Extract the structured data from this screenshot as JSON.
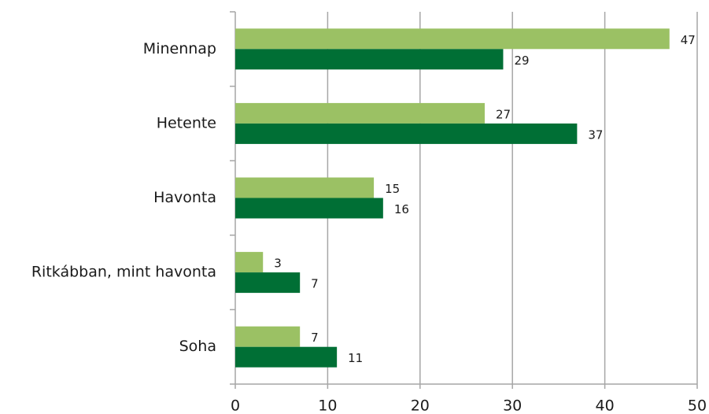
{
  "chart_data": {
    "type": "bar",
    "orientation": "horizontal",
    "categories": [
      "Minennap",
      "Hetente",
      "Havonta",
      "Ritkábban, mint havonta",
      "Soha"
    ],
    "series": [
      {
        "color": "#9bc164",
        "values": [
          47,
          27,
          15,
          3,
          7
        ]
      },
      {
        "color": "#006f35",
        "values": [
          29,
          37,
          16,
          7,
          11
        ]
      }
    ],
    "xlim": [
      0,
      50
    ],
    "xticks": [
      0,
      10,
      20,
      30,
      40,
      50
    ],
    "grid": true
  }
}
